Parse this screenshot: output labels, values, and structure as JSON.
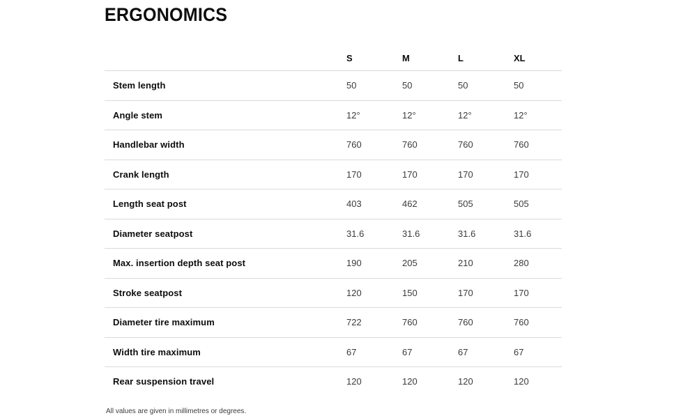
{
  "section": {
    "title": "ERGONOMICS",
    "footnote": "All values are given in millimetres or degrees."
  },
  "chart_data": {
    "type": "table",
    "title": "ERGONOMICS",
    "columns": [
      "S",
      "M",
      "L",
      "XL"
    ],
    "rows": [
      {
        "label": "Stem length",
        "values": [
          "50",
          "50",
          "50",
          "50"
        ]
      },
      {
        "label": "Angle stem",
        "values": [
          "12°",
          "12°",
          "12°",
          "12°"
        ]
      },
      {
        "label": "Handlebar width",
        "values": [
          "760",
          "760",
          "760",
          "760"
        ]
      },
      {
        "label": "Crank length",
        "values": [
          "170",
          "170",
          "170",
          "170"
        ]
      },
      {
        "label": "Length seat post",
        "values": [
          "403",
          "462",
          "505",
          "505"
        ]
      },
      {
        "label": "Diameter seatpost",
        "values": [
          "31.6",
          "31.6",
          "31.6",
          "31.6"
        ]
      },
      {
        "label": "Max. insertion depth seat post",
        "values": [
          "190",
          "205",
          "210",
          "280"
        ]
      },
      {
        "label": "Stroke seatpost",
        "values": [
          "120",
          "150",
          "170",
          "170"
        ]
      },
      {
        "label": "Diameter tire maximum",
        "values": [
          "722",
          "760",
          "760",
          "760"
        ]
      },
      {
        "label": "Width tire maximum",
        "values": [
          "67",
          "67",
          "67",
          "67"
        ]
      },
      {
        "label": "Rear suspension travel",
        "values": [
          "120",
          "120",
          "120",
          "120"
        ]
      }
    ],
    "colors": {
      "heading_text": "#0d0d0d",
      "value_text": "#3b3b3b",
      "divider": "#dadada",
      "background": "#ffffff"
    }
  }
}
